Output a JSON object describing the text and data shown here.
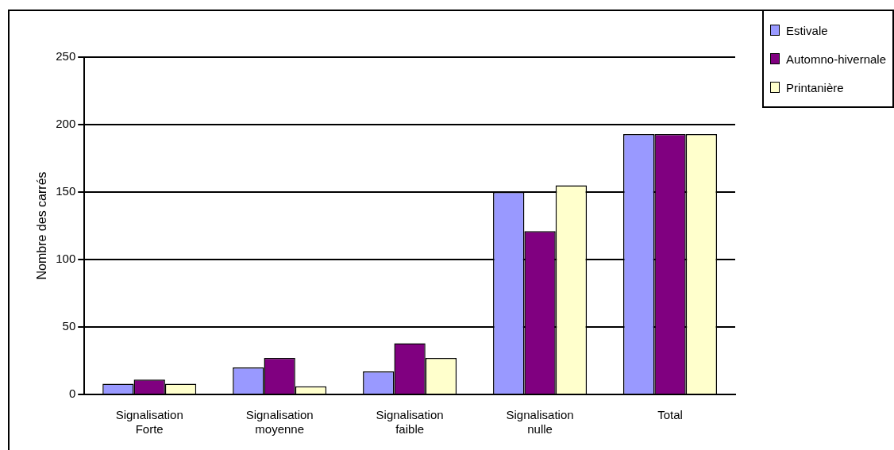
{
  "chart_data": {
    "type": "bar",
    "ylabel": "Nombre des carrés",
    "categories": [
      "Signalisation Forte",
      "Signalisation moyenne",
      "Signalisation faible",
      "Signalisation nulle",
      "Total"
    ],
    "series": [
      {
        "name": "Estivale",
        "color": "#9999ff",
        "values": [
          8,
          20,
          17,
          150,
          193
        ]
      },
      {
        "name": "Automno-hivernale",
        "color": "#800080",
        "values": [
          11,
          27,
          38,
          121,
          193
        ]
      },
      {
        "name": "Printanière",
        "color": "#ffffcc",
        "values": [
          8,
          6,
          27,
          155,
          193
        ]
      }
    ],
    "ylim": [
      0,
      250
    ],
    "yticks": [
      0,
      50,
      100,
      150,
      200,
      250
    ],
    "grid": "y",
    "legend": "top right"
  }
}
